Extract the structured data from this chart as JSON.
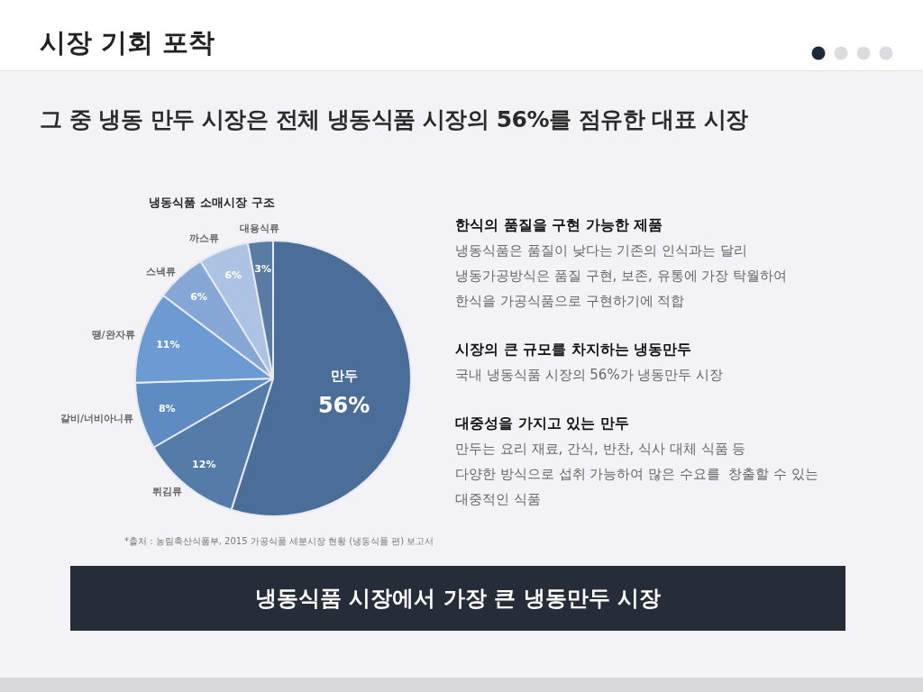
{
  "chart_data": [
    {
      "type": "other",
      "title": "시장 기회 포착",
      "subtitle": "그 중 냉동 만두 시장은 전체 냉동식품 시장의 56%를 점유한 대표 시장"
    },
    {
      "type": "pie",
      "title": "냉동식품 소매시장 구조",
      "categories": [
        "만두",
        "튀김류",
        "갈비/너비아니류",
        "땡/완자류",
        "스낵류",
        "까스류",
        "대용식류"
      ],
      "values": [
        56,
        12,
        8,
        11,
        6,
        6,
        3
      ],
      "value_labels": [
        "56%",
        "12%",
        "8%",
        "11%",
        "6%",
        "6%",
        "3%"
      ],
      "colors": [
        "#4a6e97",
        "#557ba8",
        "#5d8bc2",
        "#6b9bd2",
        "#86a7d6",
        "#adc3e3",
        "#5a7ba3"
      ],
      "annotations": [
        "*출처 : 농림축산식품부, 2015 가공식품 세분시장 현황 (냉동식품 편) 보고서"
      ]
    },
    {
      "type": "other",
      "annotations": [
        "한식의 품질을 구현 가능한 제품\n냉동식품은 품질이 낮다는 기존의 인식과는 달리\n냉동가공방식은 품질 구현, 보존, 유통에 가장 탁월하여\n한식을 가공식품으로 구현하기에 적합",
        "시장의 큰 규모를 차지하는 냉동만두\n국내 냉동식품 시장의 56%가 냉동만두 시장",
        "대중성을 가지고 있는 만두\n만두는 요리 재료, 간식, 반찬, 식사 대체 식품 등\n다양한 방식으로 섭취 가능하여 많은 수요를  창출할 수 있는\n대중적인 식품"
      ]
    },
    {
      "type": "other",
      "title": "냉동식품 시장에서 가장 큰 냉동만두 시장"
    }
  ]
}
